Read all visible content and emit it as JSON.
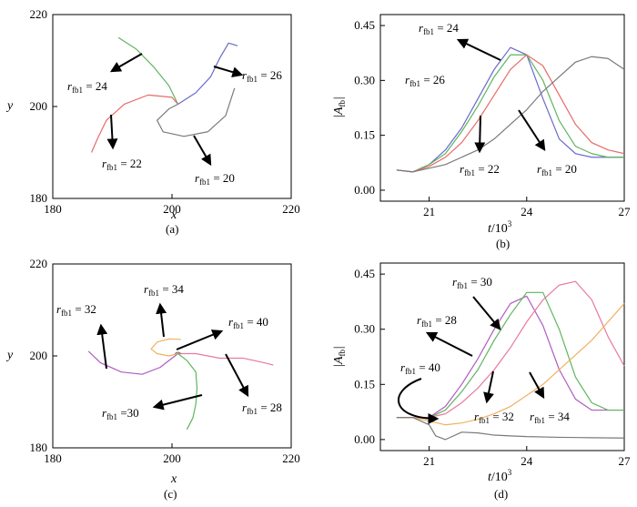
{
  "chart_data": [
    {
      "panel": "(a)",
      "type": "line",
      "xlabel": "x",
      "ylabel": "y",
      "xlim": [
        180,
        220
      ],
      "ylim": [
        180,
        220
      ],
      "xticks": [
        "180",
        "200",
        "220"
      ],
      "yticks": [
        "180",
        "200",
        "220"
      ],
      "series": [
        {
          "name": "r_fb1 = 24",
          "color": "#5fb55f",
          "x": [
            191,
            194,
            197,
            199.5,
            201
          ],
          "y": [
            215,
            212.5,
            208.5,
            204.5,
            200.5
          ]
        },
        {
          "name": "r_fb1 = 26",
          "color": "#6a6acb",
          "x": [
            201,
            204,
            206.5,
            208,
            209.5,
            211
          ],
          "y": [
            200.5,
            203,
            206.5,
            210.5,
            213.8,
            213.2
          ]
        },
        {
          "name": "r_fb1 = 22",
          "color": "#e86a6a",
          "x": [
            186.5,
            187.5,
            189,
            192,
            196,
            200,
            201
          ],
          "y": [
            190,
            193,
            197,
            200.5,
            202.5,
            202,
            200.5
          ]
        },
        {
          "name": "r_fb1 = 20",
          "color": "#7a7a7a",
          "x": [
            201,
            199.5,
            197.5,
            198.5,
            202,
            206,
            209,
            210.5
          ],
          "y": [
            200.5,
            199.5,
            197,
            194.5,
            193.5,
            194.5,
            198,
            204
          ]
        }
      ],
      "annotations": [
        {
          "text_base": "r",
          "text_sub": "fb1",
          "text_val": "= 24"
        },
        {
          "text_base": "r",
          "text_sub": "fb1",
          "text_val": "= 26"
        },
        {
          "text_base": "r",
          "text_sub": "fb1",
          "text_val": "= 22"
        },
        {
          "text_base": "r",
          "text_sub": "fb1",
          "text_val": "= 20"
        }
      ]
    },
    {
      "panel": "(b)",
      "type": "line",
      "xlabel": "t/10³",
      "ylabel": "|A_fb|",
      "xlim": [
        19.5,
        27
      ],
      "ylim": [
        -0.03,
        0.48
      ],
      "xticks": [
        "21",
        "24",
        "27"
      ],
      "yticks": [
        "0.00",
        "0.15",
        "0.30",
        "0.45"
      ],
      "series": [
        {
          "name": "r_fb1 = 24",
          "color": "#6a6acb",
          "x": [
            20,
            20.5,
            21,
            21.5,
            22,
            22.5,
            23,
            23.5,
            24,
            24.5,
            25,
            25.5,
            26,
            26.5,
            27
          ],
          "y": [
            0.055,
            0.05,
            0.07,
            0.11,
            0.17,
            0.25,
            0.33,
            0.39,
            0.37,
            0.25,
            0.14,
            0.1,
            0.09,
            0.09,
            0.09
          ]
        },
        {
          "name": "r_fb1 = 26",
          "color": "#5fb55f",
          "x": [
            20,
            20.5,
            21,
            21.5,
            22,
            22.5,
            23,
            23.5,
            24,
            24.5,
            25,
            25.5,
            26,
            26.5,
            27
          ],
          "y": [
            0.055,
            0.05,
            0.07,
            0.1,
            0.16,
            0.23,
            0.31,
            0.37,
            0.37,
            0.3,
            0.19,
            0.12,
            0.1,
            0.09,
            0.09
          ]
        },
        {
          "name": "r_fb1 = 22",
          "color": "#e86a6a",
          "x": [
            20,
            20.5,
            21,
            21.5,
            22,
            22.5,
            23,
            23.5,
            24,
            24.5,
            25,
            25.5,
            26,
            26.5,
            27
          ],
          "y": [
            0.055,
            0.05,
            0.065,
            0.09,
            0.13,
            0.19,
            0.26,
            0.33,
            0.37,
            0.34,
            0.26,
            0.18,
            0.13,
            0.11,
            0.1
          ]
        },
        {
          "name": "r_fb1 = 20",
          "color": "#7a7a7a",
          "x": [
            20,
            20.5,
            21,
            21.5,
            22,
            22.5,
            23,
            23.5,
            24,
            24.5,
            25,
            25.5,
            26,
            26.5,
            27
          ],
          "y": [
            0.055,
            0.05,
            0.06,
            0.07,
            0.09,
            0.11,
            0.14,
            0.18,
            0.22,
            0.27,
            0.31,
            0.35,
            0.365,
            0.36,
            0.33
          ]
        }
      ],
      "annotations": [
        {
          "text_base": "r",
          "text_sub": "fb1",
          "text_val": "= 24"
        },
        {
          "text_base": "r",
          "text_sub": "fb1",
          "text_val": "= 26"
        },
        {
          "text_base": "r",
          "text_sub": "fb1",
          "text_val": "= 22"
        },
        {
          "text_base": "r",
          "text_sub": "fb1",
          "text_val": "= 20"
        }
      ]
    },
    {
      "panel": "(c)",
      "type": "line",
      "xlabel": "x",
      "ylabel": "y",
      "xlim": [
        180,
        220
      ],
      "ylim": [
        180,
        220
      ],
      "xticks": [
        "180",
        "200",
        "220"
      ],
      "yticks": [
        "180",
        "200",
        "220"
      ],
      "series": [
        {
          "name": "r_fb1 = 32",
          "color": "#b05cc0",
          "x": [
            201,
            198,
            195,
            191.5,
            188,
            186
          ],
          "y": [
            200.5,
            197.5,
            196,
            196.5,
            198.5,
            201
          ]
        },
        {
          "name": "r_fb1 = 28",
          "color": "#e87aa0",
          "x": [
            201,
            204,
            208,
            212,
            215.5,
            217
          ],
          "y": [
            200.5,
            200.5,
            199.5,
            199.5,
            198.5,
            198
          ]
        },
        {
          "name": "r_fb1 = 30",
          "color": "#5fb55f",
          "x": [
            201,
            202.5,
            204,
            204.2,
            204,
            203.5,
            202.5
          ],
          "y": [
            200.5,
            199,
            196.5,
            193,
            189.5,
            186.5,
            184
          ]
        },
        {
          "name": "r_fb1 = 34",
          "color": "#f0b060",
          "x": [
            201,
            199.5,
            197.5,
            196.5,
            197.5,
            199.5,
            201.5
          ],
          "y": [
            200.5,
            200,
            200.5,
            201.5,
            203,
            203.7,
            203.6
          ]
        },
        {
          "name": "r_fb1 = 40",
          "color": "#7a7a7a",
          "x": [
            200.5,
            201,
            201.5
          ],
          "y": [
            200.5,
            200.8,
            200.5
          ]
        }
      ],
      "annotations": [
        {
          "text_base": "r",
          "text_sub": "fb1",
          "text_val": "= 34"
        },
        {
          "text_base": "r",
          "text_sub": "fb1",
          "text_val": "= 32"
        },
        {
          "text_base": "r",
          "text_sub": "fb1",
          "text_val": "= 40"
        },
        {
          "text_base": "r",
          "text_sub": "fb1",
          "text_val": "=30"
        },
        {
          "text_base": "r",
          "text_sub": "fb1",
          "text_val": "= 28"
        }
      ]
    },
    {
      "panel": "(d)",
      "type": "line",
      "xlabel": "t/10³",
      "ylabel": "|A_fb|",
      "xlim": [
        19.5,
        27
      ],
      "ylim": [
        -0.03,
        0.48
      ],
      "xticks": [
        "21",
        "24",
        "27"
      ],
      "yticks": [
        "0.00",
        "0.15",
        "0.30",
        "0.45"
      ],
      "series": [
        {
          "name": "r_fb1 = 30",
          "color": "#b05cc0",
          "x": [
            20,
            20.5,
            21,
            21.5,
            22,
            22.5,
            23,
            23.5,
            24,
            24.5,
            25,
            25.5,
            26,
            26.5,
            27
          ],
          "y": [
            0.06,
            0.06,
            0.06,
            0.09,
            0.15,
            0.22,
            0.3,
            0.37,
            0.39,
            0.31,
            0.19,
            0.11,
            0.08,
            0.08,
            0.08
          ]
        },
        {
          "name": "r_fb1 = 28",
          "color": "#5fb55f",
          "x": [
            20,
            20.5,
            21,
            21.5,
            22,
            22.5,
            23,
            23.5,
            24,
            24.5,
            25,
            25.5,
            26,
            26.5,
            27
          ],
          "y": [
            0.06,
            0.06,
            0.06,
            0.08,
            0.13,
            0.19,
            0.27,
            0.34,
            0.4,
            0.4,
            0.3,
            0.17,
            0.1,
            0.08,
            0.08
          ]
        },
        {
          "name": "r_fb1 = 34",
          "color": "#e87aa0",
          "x": [
            20,
            20.5,
            21,
            21.5,
            22,
            22.5,
            23,
            23.5,
            24,
            24.5,
            25,
            25.5,
            26,
            26.5,
            27
          ],
          "y": [
            0.06,
            0.06,
            0.06,
            0.07,
            0.1,
            0.14,
            0.19,
            0.25,
            0.32,
            0.38,
            0.42,
            0.43,
            0.38,
            0.28,
            0.2
          ]
        },
        {
          "name": "r_fb1 = 32",
          "color": "#f0b060",
          "x": [
            20,
            20.5,
            21,
            21.5,
            22,
            22.5,
            23,
            23.5,
            24,
            24.5,
            25,
            25.5,
            26,
            26.5,
            27
          ],
          "y": [
            0.06,
            0.06,
            0.05,
            0.04,
            0.045,
            0.055,
            0.07,
            0.09,
            0.12,
            0.15,
            0.19,
            0.23,
            0.27,
            0.32,
            0.37
          ]
        },
        {
          "name": "r_fb1 = 40",
          "color": "#7a7a7a",
          "x": [
            20,
            20.5,
            21,
            21.2,
            21.5,
            22,
            22.5,
            23,
            23.5,
            24,
            25,
            26,
            27
          ],
          "y": [
            0.06,
            0.06,
            0.04,
            0.01,
            0.0,
            0.02,
            0.018,
            0.012,
            0.01,
            0.008,
            0.006,
            0.005,
            0.004
          ]
        }
      ],
      "annotations": [
        {
          "text_base": "r",
          "text_sub": "fb1",
          "text_val": "= 30"
        },
        {
          "text_base": "r",
          "text_sub": "fb1",
          "text_val": "= 28"
        },
        {
          "text_base": "r",
          "text_sub": "fb1",
          "text_val": "= 40"
        },
        {
          "text_base": "r",
          "text_sub": "fb1",
          "text_val": "= 32"
        },
        {
          "text_base": "r",
          "text_sub": "fb1",
          "text_val": "= 34"
        }
      ]
    }
  ],
  "labels": {
    "panel_a": "(a)",
    "panel_b": "(b)",
    "panel_c": "(c)",
    "panel_d": "(d)",
    "x_axis_xy": "x",
    "y_axis_xy": "y",
    "t_axis_base": "t",
    "t_axis_unit": "/10",
    "t_axis_exp": "3",
    "afb_base": "A",
    "afb_sub": "fb"
  }
}
